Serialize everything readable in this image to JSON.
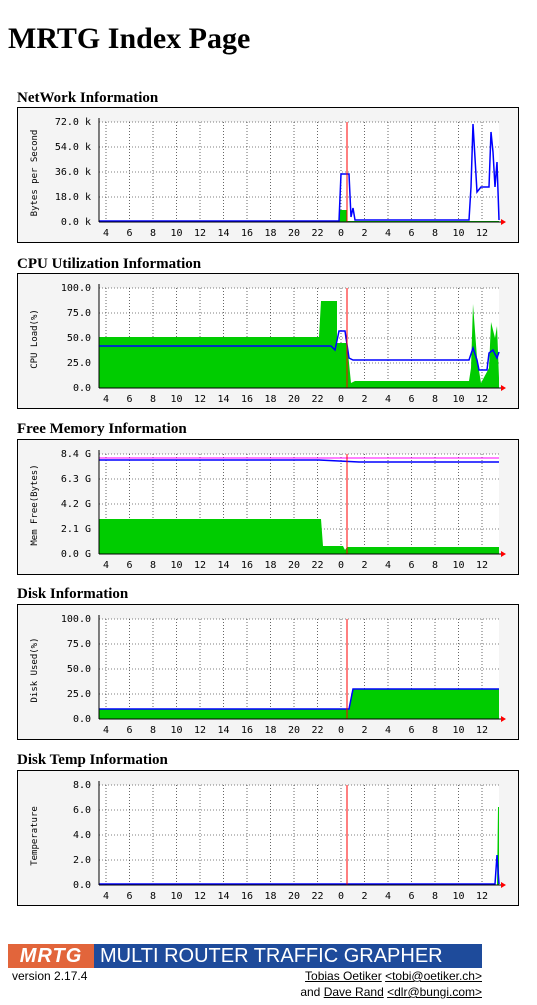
{
  "page": {
    "title": "MRTG Index Page"
  },
  "graphs": [
    {
      "title": "NetWork Information",
      "ylabel": "Bytes per Second",
      "yticks": [
        "72.0 k",
        "54.0 k",
        "36.0 k",
        "18.0 k",
        "0.0 k"
      ],
      "xticks": [
        "4",
        "6",
        "8",
        "10",
        "12",
        "14",
        "16",
        "18",
        "20",
        "22",
        "0",
        "2",
        "4",
        "6",
        "8",
        "10",
        "12"
      ]
    },
    {
      "title": "CPU Utilization Information",
      "ylabel": "CPU Load(%)",
      "yticks": [
        "100.0",
        "75.0",
        "50.0",
        "25.0",
        "0.0"
      ],
      "xticks": [
        "4",
        "6",
        "8",
        "10",
        "12",
        "14",
        "16",
        "18",
        "20",
        "22",
        "0",
        "2",
        "4",
        "6",
        "8",
        "10",
        "12"
      ]
    },
    {
      "title": "Free Memory Information",
      "ylabel": "Mem Free(Bytes)",
      "yticks": [
        "8.4 G",
        "6.3 G",
        "4.2 G",
        "2.1 G",
        "0.0 G"
      ],
      "xticks": [
        "4",
        "6",
        "8",
        "10",
        "12",
        "14",
        "16",
        "18",
        "20",
        "22",
        "0",
        "2",
        "4",
        "6",
        "8",
        "10",
        "12"
      ]
    },
    {
      "title": "Disk Information",
      "ylabel": "Disk Used(%)",
      "yticks": [
        "100.0",
        "75.0",
        "50.0",
        "25.0",
        "0.0"
      ],
      "xticks": [
        "4",
        "6",
        "8",
        "10",
        "12",
        "14",
        "16",
        "18",
        "20",
        "22",
        "0",
        "2",
        "4",
        "6",
        "8",
        "10",
        "12"
      ]
    },
    {
      "title": "Disk Temp Information",
      "ylabel": "Temperature",
      "yticks": [
        "8.0",
        "6.0",
        "4.0",
        "2.0",
        "0.0"
      ],
      "xticks": [
        "4",
        "6",
        "8",
        "10",
        "12",
        "14",
        "16",
        "18",
        "20",
        "22",
        "0",
        "2",
        "4",
        "6",
        "8",
        "10",
        "12"
      ]
    }
  ],
  "footer": {
    "logo": "MRTG",
    "tagline": "MULTI ROUTER TRAFFIC GRAPHER",
    "version": "version 2.17.4",
    "author1_name": "Tobias Oetiker",
    "author1_email": "<tobi@oetiker.ch>",
    "and": "and",
    "author2_name": "Dave Rand",
    "author2_email": "<dlr@bungi.com>"
  },
  "colors": {
    "in": "#00cc00",
    "out": "#0000ff",
    "max": "#ff00ff",
    "now": "#ff0000",
    "grid": "#000000",
    "frame_bg": "#f4f4f4"
  }
}
